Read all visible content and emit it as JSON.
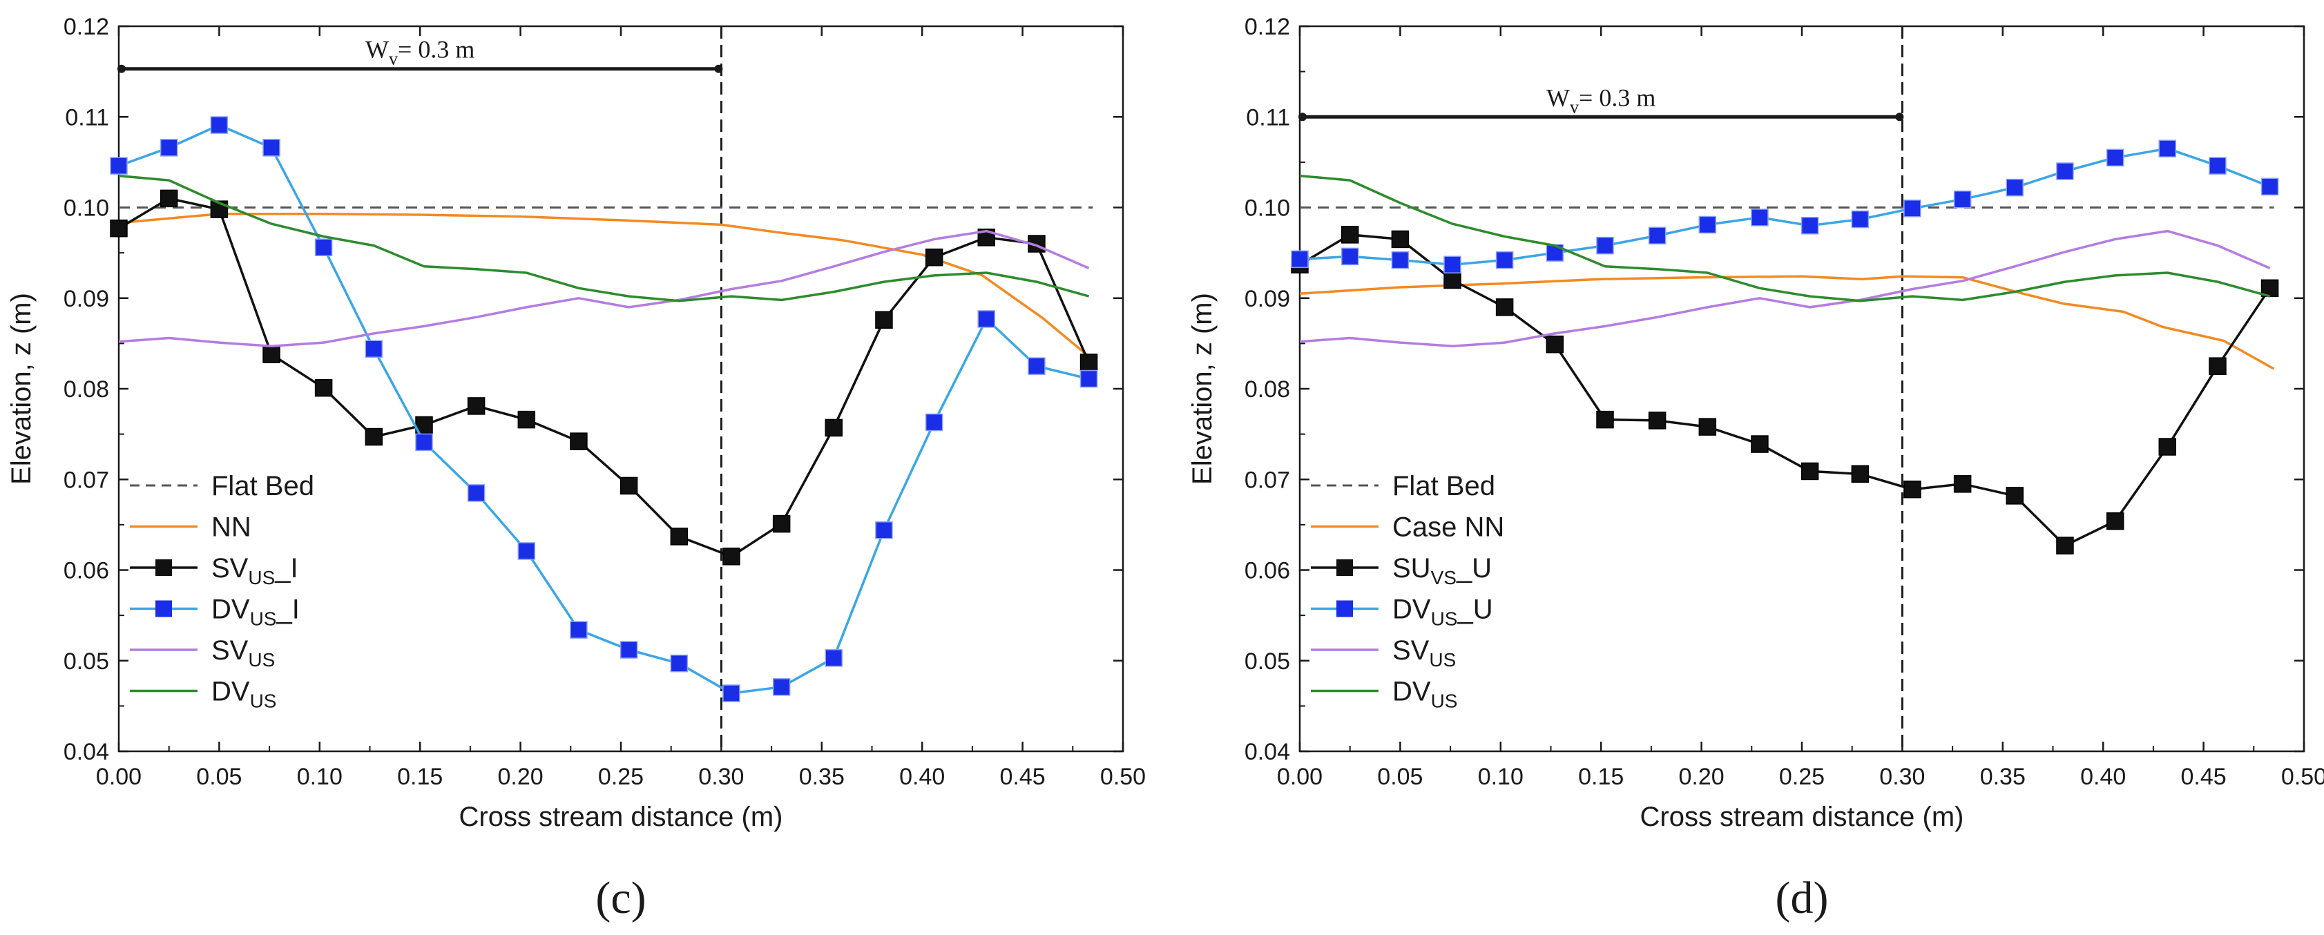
{
  "colors": {
    "flat_bed": "#555555",
    "nn": "#f28a22",
    "black_series": "#111111",
    "blue_series": "#3aa6e6",
    "blue_marker": "#1a2ee8",
    "sv_us": "#b47ce0",
    "dv_us": "#2e8b2e"
  },
  "chart_data": [
    {
      "type": "line",
      "panel_label": "(c)",
      "xlabel": "Cross stream distance (m)",
      "ylabel": "Elevation, z (m)",
      "xlim": [
        0.0,
        0.5
      ],
      "ylim": [
        0.04,
        0.12
      ],
      "xticks": [
        "0.00",
        "0.05",
        "0.10",
        "0.15",
        "0.20",
        "0.25",
        "0.30",
        "0.35",
        "0.40",
        "0.45",
        "0.50"
      ],
      "yticks": [
        "0.04",
        "0.05",
        "0.06",
        "0.07",
        "0.08",
        "0.09",
        "0.10",
        "0.11",
        "0.12"
      ],
      "annotation": {
        "text": "W",
        "sub": "v",
        "rest": "= 0.3 m",
        "x_from": 0.0,
        "x_to": 0.3,
        "y": 0.1153
      },
      "vline_x": 0.3,
      "legend": [
        {
          "key": "flat",
          "label": "Flat Bed",
          "sub": "",
          "suffix": ""
        },
        {
          "key": "nn",
          "label": "NN",
          "sub": "",
          "suffix": ""
        },
        {
          "key": "black",
          "label": "SV",
          "sub": "US",
          "suffix": "_I"
        },
        {
          "key": "blue",
          "label": "DV",
          "sub": "US",
          "suffix": "_I"
        },
        {
          "key": "svus",
          "label": "SV",
          "sub": "US",
          "suffix": ""
        },
        {
          "key": "dvus",
          "label": "DV",
          "sub": "US",
          "suffix": ""
        }
      ],
      "series": [
        {
          "key": "flat",
          "name": "Flat Bed",
          "x": [
            0.0,
            0.485
          ],
          "y": [
            0.1,
            0.1
          ]
        },
        {
          "key": "nn",
          "name": "NN",
          "x": [
            0.0,
            0.05,
            0.1,
            0.15,
            0.2,
            0.25,
            0.3,
            0.33,
            0.36,
            0.4,
            0.43,
            0.46,
            0.485
          ],
          "y": [
            0.0983,
            0.0993,
            0.0993,
            0.0992,
            0.099,
            0.0986,
            0.0981,
            0.0972,
            0.0964,
            0.0948,
            0.0925,
            0.0878,
            0.0832
          ]
        },
        {
          "key": "black",
          "name": "SV_US_I",
          "x": [
            0.0,
            0.025,
            0.05,
            0.076,
            0.102,
            0.127,
            0.152,
            0.178,
            0.203,
            0.229,
            0.254,
            0.279,
            0.305,
            0.33,
            0.356,
            0.381,
            0.406,
            0.432,
            0.457,
            0.483
          ],
          "y": [
            0.0977,
            0.101,
            0.0998,
            0.0838,
            0.0801,
            0.0747,
            0.076,
            0.0781,
            0.0766,
            0.0742,
            0.0693,
            0.0637,
            0.0615,
            0.0651,
            0.0757,
            0.0876,
            0.0945,
            0.0967,
            0.096,
            0.0829
          ]
        },
        {
          "key": "blue",
          "name": "DV_US_I",
          "x": [
            0.0,
            0.025,
            0.05,
            0.076,
            0.102,
            0.127,
            0.152,
            0.178,
            0.203,
            0.229,
            0.254,
            0.279,
            0.305,
            0.33,
            0.356,
            0.381,
            0.406,
            0.432,
            0.457,
            0.483
          ],
          "y": [
            0.1046,
            0.1066,
            0.1091,
            0.1066,
            0.0956,
            0.0844,
            0.0741,
            0.0685,
            0.0621,
            0.0534,
            0.0512,
            0.0497,
            0.0464,
            0.0471,
            0.0503,
            0.0644,
            0.0763,
            0.0877,
            0.0825,
            0.0811
          ]
        },
        {
          "key": "svus",
          "name": "SV_US",
          "x": [
            0.0,
            0.025,
            0.05,
            0.076,
            0.102,
            0.127,
            0.152,
            0.178,
            0.203,
            0.229,
            0.254,
            0.279,
            0.305,
            0.33,
            0.356,
            0.381,
            0.406,
            0.432,
            0.457,
            0.483
          ],
          "y": [
            0.0852,
            0.0856,
            0.0851,
            0.0847,
            0.0851,
            0.0861,
            0.0869,
            0.0879,
            0.089,
            0.09,
            0.089,
            0.0898,
            0.091,
            0.0919,
            0.0935,
            0.0951,
            0.0965,
            0.0974,
            0.0958,
            0.0933
          ]
        },
        {
          "key": "dvus",
          "name": "DV_US",
          "x": [
            0.0,
            0.025,
            0.05,
            0.076,
            0.102,
            0.127,
            0.152,
            0.178,
            0.203,
            0.229,
            0.254,
            0.279,
            0.305,
            0.33,
            0.356,
            0.381,
            0.406,
            0.432,
            0.457,
            0.483
          ],
          "y": [
            0.1035,
            0.103,
            0.1005,
            0.0982,
            0.0968,
            0.0958,
            0.0935,
            0.0932,
            0.0928,
            0.0911,
            0.0902,
            0.0897,
            0.0902,
            0.0898,
            0.0907,
            0.0918,
            0.0925,
            0.0928,
            0.0918,
            0.0902
          ]
        }
      ]
    },
    {
      "type": "line",
      "panel_label": "(d)",
      "xlabel": "Cross stream distance (m)",
      "ylabel": "Elevation, z (m)",
      "xlim": [
        0.0,
        0.5
      ],
      "ylim": [
        0.04,
        0.12
      ],
      "xticks": [
        "0.00",
        "0.05",
        "0.10",
        "0.15",
        "0.20",
        "0.25",
        "0.30",
        "0.35",
        "0.40",
        "0.45",
        "0.50"
      ],
      "yticks": [
        "0.04",
        "0.05",
        "0.06",
        "0.07",
        "0.08",
        "0.09",
        "0.10",
        "0.11",
        "0.12"
      ],
      "annotation": {
        "text": "W",
        "sub": "v",
        "rest": "= 0.3 m",
        "x_from": 0.0,
        "x_to": 0.3,
        "y": 0.11
      },
      "vline_x": 0.3,
      "legend": [
        {
          "key": "flat",
          "label": "Flat Bed",
          "sub": "",
          "suffix": ""
        },
        {
          "key": "nn",
          "label": "Case NN",
          "sub": "",
          "suffix": ""
        },
        {
          "key": "black",
          "label": "SU",
          "sub": "VS",
          "suffix": "_U"
        },
        {
          "key": "blue",
          "label": "DV",
          "sub": "US",
          "suffix": "_U"
        },
        {
          "key": "svus",
          "label": "SV",
          "sub": "US",
          "suffix": ""
        },
        {
          "key": "dvus",
          "label": "DV",
          "sub": "US",
          "suffix": ""
        }
      ],
      "series": [
        {
          "key": "flat",
          "name": "Flat Bed",
          "x": [
            0.0,
            0.485
          ],
          "y": [
            0.1,
            0.1
          ]
        },
        {
          "key": "nn",
          "name": "Case NN",
          "x": [
            0.0,
            0.05,
            0.1,
            0.15,
            0.2,
            0.25,
            0.28,
            0.3,
            0.33,
            0.36,
            0.38,
            0.41,
            0.43,
            0.46,
            0.485
          ],
          "y": [
            0.0905,
            0.0912,
            0.0916,
            0.0921,
            0.0923,
            0.0924,
            0.0921,
            0.0924,
            0.0923,
            0.0905,
            0.0894,
            0.0885,
            0.0868,
            0.0853,
            0.0822
          ]
        },
        {
          "key": "black",
          "name": "SU_VS_U",
          "x": [
            0.0,
            0.025,
            0.05,
            0.076,
            0.102,
            0.127,
            0.152,
            0.178,
            0.203,
            0.229,
            0.254,
            0.279,
            0.305,
            0.33,
            0.356,
            0.381,
            0.406,
            0.432,
            0.457,
            0.483
          ],
          "y": [
            0.0937,
            0.097,
            0.0965,
            0.092,
            0.089,
            0.0849,
            0.0766,
            0.0765,
            0.0758,
            0.0739,
            0.0709,
            0.0706,
            0.0689,
            0.0695,
            0.0682,
            0.0627,
            0.0654,
            0.0736,
            0.0825,
            0.0911
          ]
        },
        {
          "key": "blue",
          "name": "DV_US_U",
          "x": [
            0.0,
            0.025,
            0.05,
            0.076,
            0.102,
            0.127,
            0.152,
            0.178,
            0.203,
            0.229,
            0.254,
            0.279,
            0.305,
            0.33,
            0.356,
            0.381,
            0.406,
            0.432,
            0.457,
            0.483
          ],
          "y": [
            0.0943,
            0.0946,
            0.0942,
            0.0937,
            0.0942,
            0.095,
            0.0958,
            0.0969,
            0.0981,
            0.0989,
            0.098,
            0.0987,
            0.0999,
            0.1009,
            0.1022,
            0.104,
            0.1055,
            0.1065,
            0.1046,
            0.1023
          ]
        },
        {
          "key": "svus",
          "name": "SV_US",
          "x": [
            0.0,
            0.025,
            0.05,
            0.076,
            0.102,
            0.127,
            0.152,
            0.178,
            0.203,
            0.229,
            0.254,
            0.279,
            0.305,
            0.33,
            0.356,
            0.381,
            0.406,
            0.432,
            0.457,
            0.483
          ],
          "y": [
            0.0852,
            0.0856,
            0.0851,
            0.0847,
            0.0851,
            0.0861,
            0.0869,
            0.0879,
            0.089,
            0.09,
            0.089,
            0.0898,
            0.091,
            0.0919,
            0.0935,
            0.0951,
            0.0965,
            0.0974,
            0.0958,
            0.0933
          ]
        },
        {
          "key": "dvus",
          "name": "DV_US",
          "x": [
            0.0,
            0.025,
            0.05,
            0.076,
            0.102,
            0.127,
            0.152,
            0.178,
            0.203,
            0.229,
            0.254,
            0.279,
            0.305,
            0.33,
            0.356,
            0.381,
            0.406,
            0.432,
            0.457,
            0.483
          ],
          "y": [
            0.1035,
            0.103,
            0.1005,
            0.0982,
            0.0968,
            0.0958,
            0.0935,
            0.0932,
            0.0928,
            0.0911,
            0.0902,
            0.0897,
            0.0902,
            0.0898,
            0.0907,
            0.0918,
            0.0925,
            0.0928,
            0.0918,
            0.0902
          ]
        }
      ]
    }
  ]
}
